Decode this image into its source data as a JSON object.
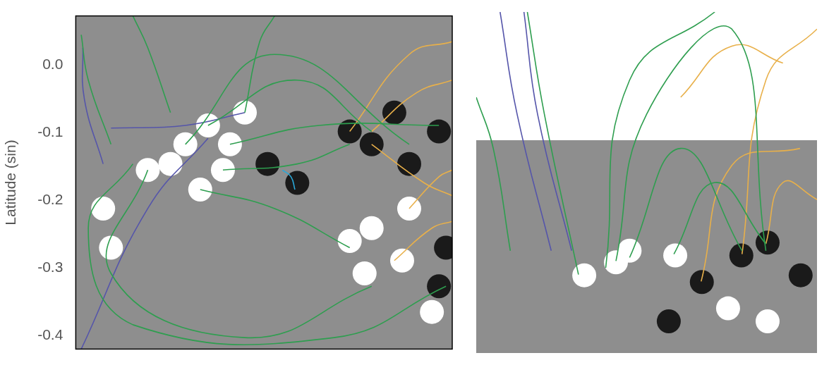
{
  "chart_data": [
    {
      "type": "scatter",
      "y_label": "Latitude (sin)",
      "xlim": [
        0,
        0.481
      ],
      "ylim": [
        -0.42,
        0.073
      ],
      "yticks": [
        {
          "value": 0,
          "label": "0.0"
        },
        -0.1,
        -0.2,
        -0.3,
        -0.4
      ],
      "tick_labels": "y",
      "grid": false,
      "series": [
        {
          "type": "scatter",
          "marker": "circle",
          "color": "#ffffff",
          "x": [
            0.169,
            0.14,
            0.197,
            0.121,
            0.188,
            0.216,
            0.159,
            0.092,
            0.378,
            0.35,
            0.417,
            0.369,
            0.426,
            0.035,
            0.045,
            0.455
          ],
          "y": [
            -0.089,
            -0.117,
            -0.117,
            -0.146,
            -0.155,
            -0.07,
            -0.184,
            -0.155,
            -0.241,
            -0.26,
            -0.289,
            -0.308,
            -0.212,
            -0.212,
            -0.27,
            -0.365
          ]
        },
        {
          "type": "scatter",
          "marker": "circle",
          "color": "#1a1a1a",
          "x": [
            0.378,
            0.35,
            0.426,
            0.464,
            0.283,
            0.245,
            0.473,
            0.464,
            0.407
          ],
          "y": [
            -0.117,
            -0.098,
            -0.146,
            -0.098,
            -0.174,
            -0.146,
            -0.27,
            -0.327,
            -0.07
          ]
        },
        {
          "type": "line",
          "marker": "none",
          "line_style": "solid",
          "color": "#2e9e4f",
          "x": [
            0.169,
            0.283,
            0.378
          ],
          "y": [
            -0.089,
            -0.022,
            -0.098
          ]
        },
        {
          "type": "line",
          "marker": "none",
          "line_style": "solid",
          "color": "#2e9e4f",
          "x": [
            0.14,
            0.254,
            0.426
          ],
          "y": [
            -0.117,
            0.016,
            -0.117
          ]
        },
        {
          "type": "line",
          "marker": "none",
          "line_style": "solid",
          "color": "#2e9e4f",
          "x": [
            0.188,
            0.283,
            0.35
          ],
          "y": [
            -0.155,
            -0.146,
            -0.117
          ]
        },
        {
          "type": "line",
          "marker": "none",
          "line_style": "solid",
          "color": "#2e9e4f",
          "x": [
            0.092,
            0.045,
            0.216,
            0.378
          ],
          "y": [
            -0.155,
            -0.308,
            -0.403,
            -0.327
          ]
        },
        {
          "type": "line",
          "marker": "none",
          "line_style": "solid",
          "color": "#2e9e4f",
          "x": [
            0.121,
            0.092,
            0.073
          ],
          "y": [
            -0.07,
            0.026,
            0.073
          ]
        },
        {
          "type": "line",
          "marker": "none",
          "line_style": "solid",
          "color": "#2e9e4f",
          "x": [
            0.216,
            0.235,
            0.254
          ],
          "y": [
            -0.07,
            0.035,
            0.073
          ]
        },
        {
          "type": "line",
          "marker": "none",
          "line_style": "solid",
          "color": "#2e9e4f",
          "x": [
            0.159,
            0.254,
            0.35
          ],
          "y": [
            -0.184,
            -0.212,
            -0.27
          ]
        },
        {
          "type": "line",
          "marker": "none",
          "line_style": "solid",
          "color": "#2e9e4f",
          "x": [
            0.073,
            0.016,
            0.073,
            0.33,
            0.473
          ],
          "y": [
            -0.146,
            -0.241,
            -0.384,
            -0.403,
            -0.327
          ]
        },
        {
          "type": "line",
          "marker": "none",
          "line_style": "solid",
          "color": "#2e9e4f",
          "x": [
            0.197,
            0.311,
            0.464
          ],
          "y": [
            -0.117,
            -0.089,
            -0.089
          ]
        },
        {
          "type": "line",
          "marker": "none",
          "line_style": "solid",
          "color": "#2e9e4f",
          "x": [
            0.045,
            0.016,
            0.007
          ],
          "y": [
            -0.117,
            -0.022,
            0.045
          ]
        },
        {
          "type": "line",
          "marker": "none",
          "line_style": "solid",
          "color": "#e8b04a",
          "x": [
            0.378,
            0.435,
            0.481
          ],
          "y": [
            -0.098,
            -0.041,
            -0.022
          ]
        },
        {
          "type": "line",
          "marker": "none",
          "line_style": "solid",
          "color": "#e8b04a",
          "x": [
            0.35,
            0.426,
            0.481
          ],
          "y": [
            -0.098,
            0.016,
            0.035
          ]
        },
        {
          "type": "line",
          "marker": "none",
          "line_style": "solid",
          "color": "#e8b04a",
          "x": [
            0.426,
            0.464,
            0.481
          ],
          "y": [
            -0.212,
            -0.165,
            -0.155
          ]
        },
        {
          "type": "line",
          "marker": "none",
          "line_style": "solid",
          "color": "#e8b04a",
          "x": [
            0.378,
            0.445,
            0.481
          ],
          "y": [
            -0.117,
            -0.174,
            -0.193
          ]
        },
        {
          "type": "line",
          "marker": "none",
          "line_style": "solid",
          "color": "#e8b04a",
          "x": [
            0.407,
            0.455,
            0.481
          ],
          "y": [
            -0.289,
            -0.241,
            -0.231
          ]
        },
        {
          "type": "line",
          "marker": "none",
          "line_style": "solid",
          "color": "#5555aa",
          "x": [
            0.035,
            0.011,
            0.009
          ],
          "y": [
            -0.146,
            -0.05,
            0.026
          ]
        },
        {
          "type": "line",
          "marker": "none",
          "line_style": "solid",
          "color": "#5555aa",
          "x": [
            0.169,
            0.092,
            0.007
          ],
          "y": [
            -0.108,
            -0.212,
            -0.42
          ]
        },
        {
          "type": "line",
          "marker": "none",
          "line_style": "solid",
          "color": "#5555aa",
          "x": [
            0.045,
            0.14,
            0.216
          ],
          "y": [
            -0.093,
            -0.089,
            -0.07
          ]
        },
        {
          "type": "line",
          "marker": "none",
          "line_style": "solid",
          "color": "#2aa8d8",
          "x": [
            0.264,
            0.275,
            0.28
          ],
          "y": [
            -0.155,
            -0.165,
            -0.184
          ]
        }
      ]
    },
    {
      "type": "scatter",
      "xlim": [
        0,
        1
      ],
      "ylim": [
        0,
        1
      ],
      "tick_labels": false,
      "grid": false,
      "series": [
        {
          "type": "scatter",
          "marker": "circle",
          "color": "#ffffff",
          "x": [
            0.41,
            0.317,
            0.584,
            0.855,
            0.739,
            0.45
          ],
          "y": [
            0.266,
            0.228,
            0.286,
            0.093,
            0.131,
            0.3
          ]
        },
        {
          "type": "scatter",
          "marker": "circle",
          "color": "#1a1a1a",
          "x": [
            0.778,
            0.855,
            0.662,
            0.565,
            0.952
          ],
          "y": [
            0.286,
            0.324,
            0.208,
            0.093,
            0.228
          ]
        },
        {
          "type": "line",
          "marker": "none",
          "line_style": "solid",
          "color": "#2e9e4f",
          "x": [
            0.41,
            0.5,
            0.75,
            0.85
          ],
          "y": [
            0.27,
            0.7,
            0.95,
            0.3
          ]
        },
        {
          "type": "line",
          "marker": "none",
          "line_style": "solid",
          "color": "#2e9e4f",
          "x": [
            0.38,
            0.45,
            0.7
          ],
          "y": [
            0.25,
            0.8,
            1.0
          ]
        },
        {
          "type": "line",
          "marker": "none",
          "line_style": "solid",
          "color": "#2e9e4f",
          "x": [
            0.3,
            0.2,
            0.15
          ],
          "y": [
            0.23,
            0.7,
            1.0
          ]
        },
        {
          "type": "line",
          "marker": "none",
          "line_style": "solid",
          "color": "#2e9e4f",
          "x": [
            0.45,
            0.6,
            0.78
          ],
          "y": [
            0.28,
            0.6,
            0.3
          ]
        },
        {
          "type": "line",
          "marker": "none",
          "line_style": "solid",
          "color": "#2e9e4f",
          "x": [
            0.58,
            0.7,
            0.85
          ],
          "y": [
            0.29,
            0.5,
            0.32
          ]
        },
        {
          "type": "line",
          "marker": "none",
          "line_style": "solid",
          "color": "#2e9e4f",
          "x": [
            0.1,
            0.05,
            0.0
          ],
          "y": [
            0.3,
            0.6,
            0.75
          ]
        },
        {
          "type": "line",
          "marker": "none",
          "line_style": "solid",
          "color": "#e8b04a",
          "x": [
            0.78,
            0.85,
            1.0
          ],
          "y": [
            0.29,
            0.8,
            0.95
          ]
        },
        {
          "type": "line",
          "marker": "none",
          "line_style": "solid",
          "color": "#e8b04a",
          "x": [
            0.66,
            0.75,
            0.95
          ],
          "y": [
            0.21,
            0.55,
            0.6
          ]
        },
        {
          "type": "line",
          "marker": "none",
          "line_style": "solid",
          "color": "#e8b04a",
          "x": [
            0.85,
            0.9,
            1.0
          ],
          "y": [
            0.32,
            0.5,
            0.45
          ]
        },
        {
          "type": "line",
          "marker": "none",
          "line_style": "solid",
          "color": "#e8b04a",
          "x": [
            0.6,
            0.75,
            0.9
          ],
          "y": [
            0.75,
            0.9,
            0.85
          ]
        },
        {
          "type": "line",
          "marker": "none",
          "line_style": "solid",
          "color": "#5555aa",
          "x": [
            0.22,
            0.12,
            0.07
          ],
          "y": [
            0.3,
            0.7,
            1.0
          ]
        },
        {
          "type": "line",
          "marker": "none",
          "line_style": "solid",
          "color": "#5555aa",
          "x": [
            0.28,
            0.18,
            0.14
          ],
          "y": [
            0.3,
            0.7,
            1.0
          ]
        }
      ]
    }
  ]
}
